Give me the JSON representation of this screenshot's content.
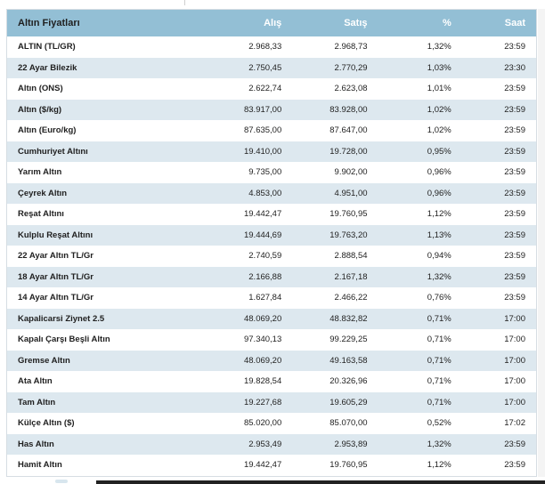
{
  "table": {
    "headers": {
      "name": "Altın Fiyatları",
      "buy": "Alış",
      "sell": "Satış",
      "percent": "%",
      "time": "Saat"
    },
    "rows": [
      {
        "name": "ALTIN (TL/GR)",
        "buy": "2.968,33",
        "sell": "2.968,73",
        "percent": "1,32%",
        "time": "23:59"
      },
      {
        "name": "22 Ayar Bilezik",
        "buy": "2.750,45",
        "sell": "2.770,29",
        "percent": "1,03%",
        "time": "23:30"
      },
      {
        "name": "Altın (ONS)",
        "buy": "2.622,74",
        "sell": "2.623,08",
        "percent": "1,01%",
        "time": "23:59"
      },
      {
        "name": "Altın ($/kg)",
        "buy": "83.917,00",
        "sell": "83.928,00",
        "percent": "1,02%",
        "time": "23:59"
      },
      {
        "name": "Altın (Euro/kg)",
        "buy": "87.635,00",
        "sell": "87.647,00",
        "percent": "1,02%",
        "time": "23:59"
      },
      {
        "name": "Cumhuriyet Altını",
        "buy": "19.410,00",
        "sell": "19.728,00",
        "percent": "0,95%",
        "time": "23:59"
      },
      {
        "name": "Yarım Altın",
        "buy": "9.735,00",
        "sell": "9.902,00",
        "percent": "0,96%",
        "time": "23:59"
      },
      {
        "name": "Çeyrek Altın",
        "buy": "4.853,00",
        "sell": "4.951,00",
        "percent": "0,96%",
        "time": "23:59"
      },
      {
        "name": "Reşat Altını",
        "buy": "19.442,47",
        "sell": "19.760,95",
        "percent": "1,12%",
        "time": "23:59"
      },
      {
        "name": "Kulplu Reşat Altını",
        "buy": "19.444,69",
        "sell": "19.763,20",
        "percent": "1,13%",
        "time": "23:59"
      },
      {
        "name": "22 Ayar Altın TL/Gr",
        "buy": "2.740,59",
        "sell": "2.888,54",
        "percent": "0,94%",
        "time": "23:59"
      },
      {
        "name": "18 Ayar Altın TL/Gr",
        "buy": "2.166,88",
        "sell": "2.167,18",
        "percent": "1,32%",
        "time": "23:59"
      },
      {
        "name": "14 Ayar Altın TL/Gr",
        "buy": "1.627,84",
        "sell": "2.466,22",
        "percent": "0,76%",
        "time": "23:59"
      },
      {
        "name": "Kapalicarsi Ziynet 2.5",
        "buy": "48.069,20",
        "sell": "48.832,82",
        "percent": "0,71%",
        "time": "17:00"
      },
      {
        "name": "Kapalı Çarşı Beşli Altın",
        "buy": "97.340,13",
        "sell": "99.229,25",
        "percent": "0,71%",
        "time": "17:00"
      },
      {
        "name": "Gremse Altın",
        "buy": "48.069,20",
        "sell": "49.163,58",
        "percent": "0,71%",
        "time": "17:00"
      },
      {
        "name": "Ata Altın",
        "buy": "19.828,54",
        "sell": "20.326,96",
        "percent": "0,71%",
        "time": "17:00"
      },
      {
        "name": "Tam Altın",
        "buy": "19.227,68",
        "sell": "19.605,29",
        "percent": "0,71%",
        "time": "17:00"
      },
      {
        "name": "Külçe Altın ($)",
        "buy": "85.020,00",
        "sell": "85.070,00",
        "percent": "0,52%",
        "time": "17:02"
      },
      {
        "name": "Has Altın",
        "buy": "2.953,49",
        "sell": "2.953,89",
        "percent": "1,32%",
        "time": "23:59"
      },
      {
        "name": "Hamit Altın",
        "buy": "19.442,47",
        "sell": "19.760,95",
        "percent": "1,12%",
        "time": "23:59"
      }
    ]
  },
  "colors": {
    "header_bg": "#93bfd5",
    "row_alt_bg": "#dde8ef",
    "row_bg": "#ffffff"
  }
}
